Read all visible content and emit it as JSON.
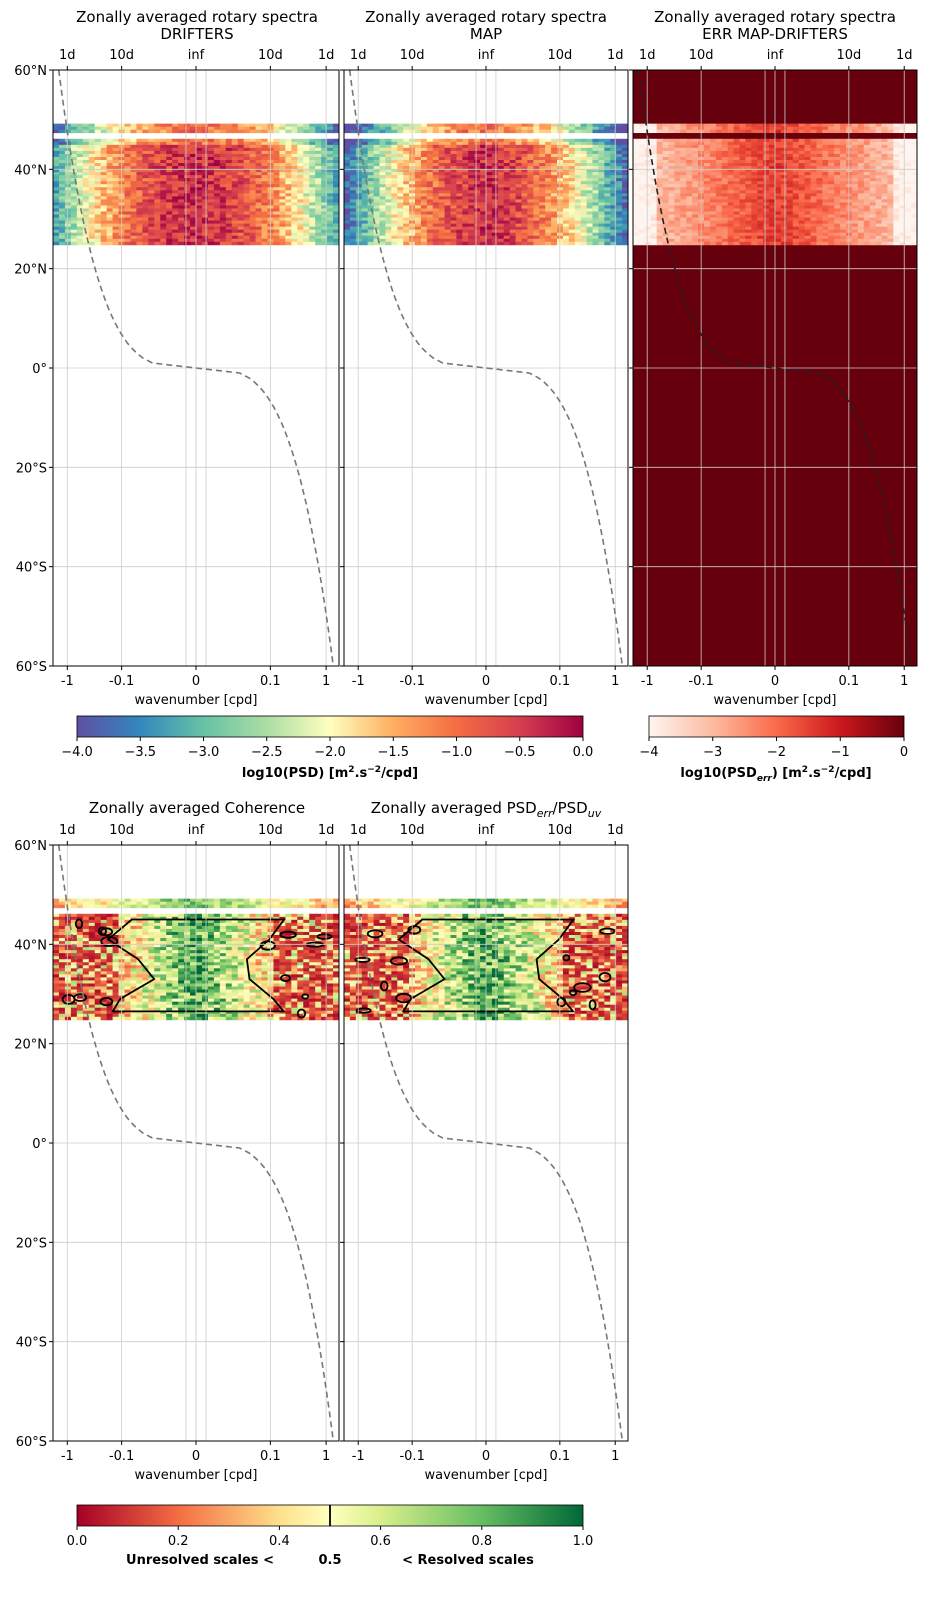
{
  "chart_data": [
    {
      "type": "heatmap",
      "title": "Zonally averaged rotary spectra",
      "subtitle": "DRIFTERS",
      "xlabel": "wavenumber [cpd]",
      "ylabel": "",
      "bottom_ticks": [
        "-1",
        "-0.1",
        "0",
        "0.1",
        "1"
      ],
      "top_ticks": [
        "1d",
        "10d",
        "inf",
        "10d",
        "1d"
      ],
      "y_ticks": [
        "60°N",
        "40°N",
        "20°N",
        "0°",
        "20°S",
        "40°S",
        "60°S"
      ],
      "ylim": [
        -60,
        60
      ],
      "data_lat_range": [
        25,
        49
      ],
      "colormap": "Spectral_r",
      "colorbar": {
        "ticks": [
          "−4.0",
          "−3.5",
          "−3.0",
          "−2.5",
          "−2.0",
          "−1.5",
          "−1.0",
          "−0.5",
          "0.0"
        ],
        "range": [
          -4,
          0
        ]
      },
      "profile_curve": "dashed gray inertial-frequency curve"
    },
    {
      "type": "heatmap",
      "title": "Zonally averaged rotary spectra",
      "subtitle": "MAP",
      "xlabel": "wavenumber [cpd]",
      "bottom_ticks": [
        "-1",
        "-0.1",
        "0",
        "0.1",
        "1"
      ],
      "top_ticks": [
        "1d",
        "10d",
        "inf",
        "10d",
        "1d"
      ],
      "ylim": [
        -60,
        60
      ],
      "data_lat_range": [
        25,
        49
      ],
      "colormap": "Spectral_r"
    },
    {
      "type": "heatmap",
      "title": "Zonally averaged rotary spectra",
      "subtitle": "ERR MAP-DRIFTERS",
      "xlabel": "wavenumber [cpd]",
      "bottom_ticks": [
        "-1",
        "-0.1",
        "0",
        "0.1",
        "1"
      ],
      "top_ticks": [
        "1d",
        "10d",
        "inf",
        "10d",
        "1d"
      ],
      "ylim": [
        -60,
        60
      ],
      "colormap": "Reds",
      "colorbar": {
        "ticks": [
          "−4",
          "−3",
          "−2",
          "−1",
          "0"
        ],
        "range": [
          -4,
          0
        ]
      }
    },
    {
      "type": "heatmap",
      "title": "Zonally averaged Coherence",
      "xlabel": "wavenumber [cpd]",
      "bottom_ticks": [
        "-1",
        "-0.1",
        "0",
        "0.1",
        "1"
      ],
      "top_ticks": [
        "1d",
        "10d",
        "inf",
        "10d",
        "1d"
      ],
      "y_ticks": [
        "60°N",
        "40°N",
        "20°N",
        "0°",
        "20°S",
        "40°S",
        "60°S"
      ],
      "ylim": [
        -60,
        60
      ],
      "data_lat_range": [
        25,
        49
      ],
      "colormap": "RdYlGn",
      "contour_level": 0.5
    },
    {
      "type": "heatmap",
      "title": "Zonally averaged PSD",
      "xlabel": "wavenumber [cpd]",
      "bottom_ticks": [
        "-1",
        "-0.1",
        "0",
        "0.1",
        "1"
      ],
      "top_ticks": [
        "1d",
        "10d",
        "inf",
        "10d",
        "1d"
      ],
      "ylim": [
        -60,
        60
      ],
      "data_lat_range": [
        25,
        49
      ],
      "colormap": "RdYlGn",
      "contour_level": 0.5,
      "colorbar": {
        "ticks": [
          "0.0",
          "0.2",
          "0.4",
          "0.6",
          "0.8",
          "1.0"
        ],
        "range": [
          0,
          1
        ],
        "marker": 0.5
      }
    }
  ],
  "labels": {
    "cbar_psd": "log10(PSD) [m",
    "cbar_psd_sup1": "2",
    "cbar_psd_mid": ".s",
    "cbar_psd_sup2": "−2",
    "cbar_psd_end": "/cpd]",
    "cbar_err": "log10(PSD",
    "cbar_err_sub": "err",
    "cbar_err_mid": ") [m",
    "cbar_err_sup1": "2",
    "cbar_err_mid2": ".s",
    "cbar_err_sup2": "−2",
    "cbar_err_end": "/cpd]",
    "title5_sub1": "err",
    "title5_mid": "/PSD",
    "title5_sub2": "uv",
    "cbar_coh_left": "Unresolved scales <",
    "cbar_coh_mid": "0.5",
    "cbar_coh_right": "< Resolved scales"
  }
}
